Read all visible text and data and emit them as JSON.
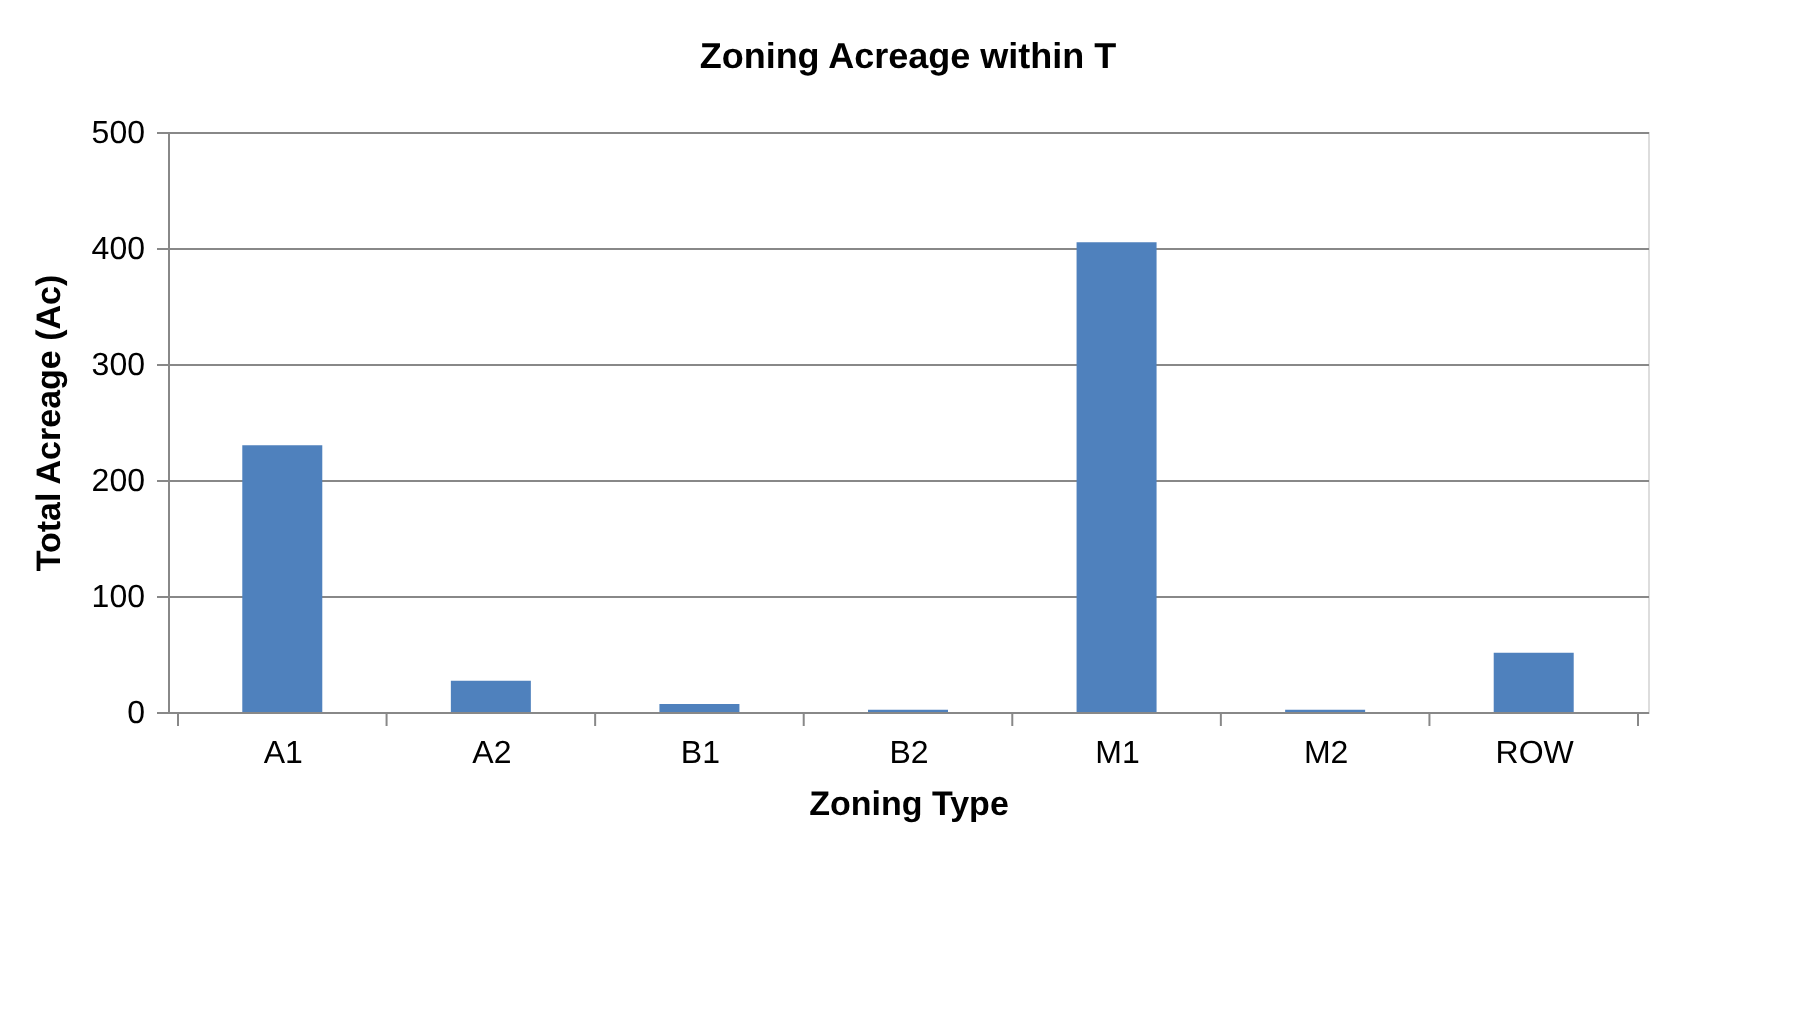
{
  "chart_data": {
    "type": "bar",
    "title": "Zoning Acreage within T",
    "xlabel": "Zoning Type",
    "ylabel": "Total Acreage (Ac)",
    "categories": [
      "A1",
      "A2",
      "B1",
      "B2",
      "M1",
      "M2",
      "ROW"
    ],
    "series": [
      {
        "color": "#4f81bd",
        "values": [
          230,
          27,
          7,
          2,
          405,
          2,
          51
        ]
      }
    ],
    "ylim": [
      0,
      500
    ],
    "yticks": [
      0,
      100,
      200,
      300,
      400,
      500
    ],
    "grid": "y",
    "legend": false
  }
}
